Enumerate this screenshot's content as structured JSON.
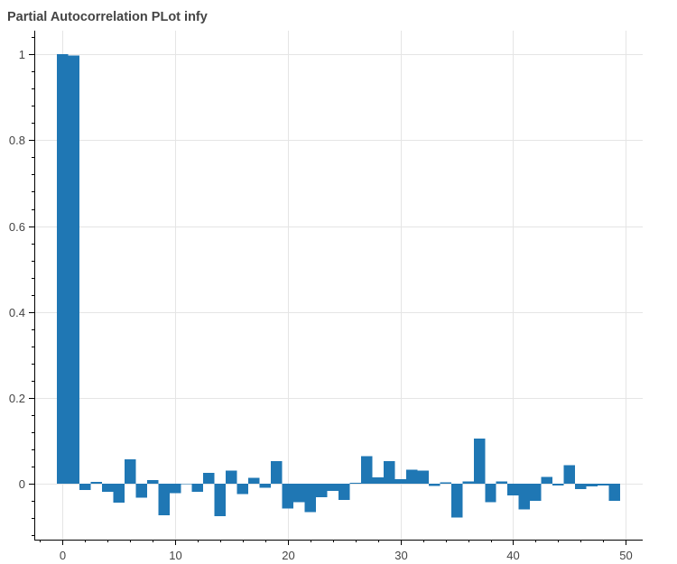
{
  "chart_data": {
    "type": "bar",
    "title": "Partial Autocorrelation PLot infy",
    "xlabel": "",
    "ylabel": "",
    "x": [
      0,
      1,
      2,
      3,
      4,
      5,
      6,
      7,
      8,
      9,
      10,
      11,
      12,
      13,
      14,
      15,
      16,
      17,
      18,
      19,
      20,
      21,
      22,
      23,
      24,
      25,
      26,
      27,
      28,
      29,
      30,
      31,
      32,
      33,
      34,
      35,
      36,
      37,
      38,
      39,
      40,
      41,
      42,
      43,
      44,
      45,
      46,
      47,
      48,
      49
    ],
    "values": [
      1.0,
      0.997,
      -0.014,
      0.004,
      -0.019,
      -0.044,
      0.057,
      -0.032,
      0.009,
      -0.073,
      -0.022,
      0.0,
      -0.019,
      0.025,
      -0.075,
      0.031,
      -0.024,
      0.014,
      -0.009,
      0.053,
      -0.057,
      -0.043,
      -0.066,
      -0.031,
      -0.017,
      -0.038,
      0.002,
      0.064,
      0.015,
      0.053,
      0.011,
      0.033,
      0.031,
      -0.005,
      0.003,
      -0.079,
      0.006,
      0.105,
      -0.043,
      0.005,
      -0.027,
      -0.06,
      -0.04,
      0.016,
      -0.004,
      0.043,
      -0.012,
      -0.006,
      -0.004,
      -0.04
    ],
    "xlim": [
      -2.5,
      51.5
    ],
    "ylim": [
      -0.13,
      1.055
    ],
    "xticks": [
      0,
      10,
      20,
      30,
      40,
      50
    ],
    "yticks": [
      0,
      0.2,
      0.4,
      0.6,
      0.8,
      1
    ],
    "xtick_labels": [
      "0",
      "10",
      "20",
      "30",
      "40",
      "50"
    ],
    "ytick_labels": [
      "0",
      "0.2",
      "0.4",
      "0.6",
      "0.8",
      "1"
    ],
    "bar_width": 1,
    "bar_color": "#1f77b4",
    "grid": true,
    "grid_color": "#e5e5e5"
  }
}
